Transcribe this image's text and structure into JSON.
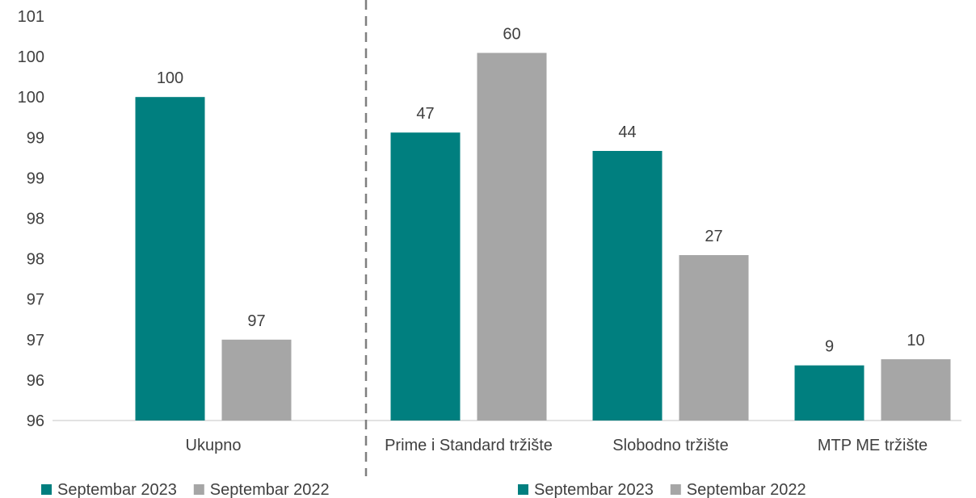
{
  "chart_data": [
    {
      "type": "bar",
      "categories": [
        "Ukupno"
      ],
      "series": [
        {
          "name": "Septembar 2023",
          "values": [
            100
          ],
          "color": "#007F7F"
        },
        {
          "name": "Septembar 2022",
          "values": [
            97
          ],
          "color": "#A6A6A6"
        }
      ],
      "data_labels": [
        [
          "100"
        ],
        [
          "97"
        ]
      ],
      "yticks": [
        "101",
        "100",
        "100",
        "99",
        "99",
        "98",
        "98",
        "97",
        "97",
        "96",
        "96"
      ],
      "ylim": [
        96,
        101
      ],
      "grid": false,
      "legend": "bottom-left"
    },
    {
      "type": "bar",
      "categories": [
        "Prime i Standard tržište",
        "Slobodno tržište",
        "MTP ME tržište"
      ],
      "series": [
        {
          "name": "Septembar 2023",
          "values": [
            47,
            44,
            9
          ],
          "color": "#007F7F"
        },
        {
          "name": "Septembar 2022",
          "values": [
            60,
            27,
            10
          ],
          "color": "#A6A6A6"
        }
      ],
      "data_labels": [
        [
          "47",
          "44",
          "9"
        ],
        [
          "60",
          "27",
          "10"
        ]
      ],
      "ylim": [
        0,
        66
      ],
      "grid": false,
      "legend": "bottom-right"
    }
  ]
}
